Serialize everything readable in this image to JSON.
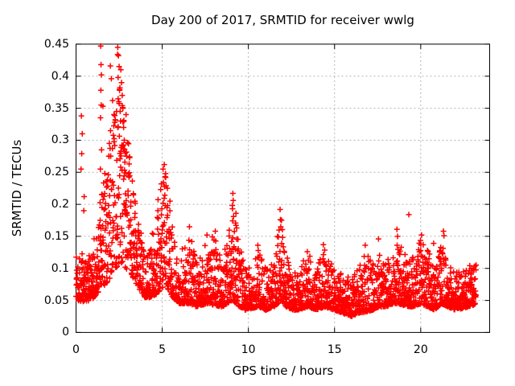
{
  "chart_data": {
    "type": "scatter",
    "title": "Day 200 of 2017, SRMTID for receiver wwlg",
    "xlabel": "GPS time / hours",
    "ylabel": "SRMTID / TECUs",
    "xlim": [
      0,
      24
    ],
    "ylim": [
      0,
      0.45
    ],
    "x_ticks": [
      0,
      5,
      10,
      15,
      20
    ],
    "x_tick_labels": [
      "0",
      "5",
      "10",
      "15",
      "20"
    ],
    "y_ticks": [
      0,
      0.05,
      0.1,
      0.15,
      0.2,
      0.25,
      0.3,
      0.35,
      0.4,
      0.45
    ],
    "y_tick_labels": [
      "0",
      "0.05",
      "0.1",
      "0.15",
      "0.2",
      "0.25",
      "0.3",
      "0.35",
      "0.4",
      "0.45"
    ],
    "grid": true,
    "legend": "none",
    "background": "#ffffff",
    "axis_color": "#000000",
    "grid_color": "#b4b4b4",
    "marker": {
      "style": "plus",
      "color": "#ff0000",
      "size": 7
    },
    "series": [
      {
        "name": "SRMTID",
        "seed": 1337,
        "sampling_hours": 0.008333,
        "t_start": 0,
        "t_end": 23.22,
        "envelope": [
          [
            0.0,
            0.05,
            0.145,
            1.6
          ],
          [
            0.4,
            0.048,
            0.125,
            1.9
          ],
          [
            0.9,
            0.05,
            0.12,
            2.0
          ],
          [
            1.2,
            0.06,
            0.18,
            1.8
          ],
          [
            1.5,
            0.07,
            0.23,
            1.6
          ],
          [
            1.9,
            0.08,
            0.3,
            1.5
          ],
          [
            2.3,
            0.1,
            0.36,
            1.4
          ],
          [
            2.6,
            0.11,
            0.4,
            1.35
          ],
          [
            2.9,
            0.1,
            0.33,
            1.45
          ],
          [
            3.2,
            0.09,
            0.26,
            1.5
          ],
          [
            3.6,
            0.07,
            0.18,
            1.8
          ],
          [
            4.0,
            0.055,
            0.13,
            2.0
          ],
          [
            4.3,
            0.055,
            0.14,
            2.0
          ],
          [
            4.7,
            0.06,
            0.2,
            1.8
          ],
          [
            5.0,
            0.07,
            0.24,
            1.7
          ],
          [
            5.3,
            0.07,
            0.26,
            1.7
          ],
          [
            5.6,
            0.055,
            0.17,
            2.0
          ],
          [
            6.0,
            0.045,
            0.12,
            2.2
          ],
          [
            6.6,
            0.045,
            0.16,
            2.2
          ],
          [
            7.0,
            0.04,
            0.11,
            2.2
          ],
          [
            7.6,
            0.045,
            0.15,
            2.2
          ],
          [
            8.1,
            0.042,
            0.155,
            2.2
          ],
          [
            8.5,
            0.04,
            0.11,
            2.2
          ],
          [
            9.1,
            0.05,
            0.215,
            2.0
          ],
          [
            9.4,
            0.042,
            0.15,
            2.2
          ],
          [
            9.8,
            0.035,
            0.1,
            2.2
          ],
          [
            10.3,
            0.038,
            0.11,
            2.2
          ],
          [
            10.6,
            0.04,
            0.13,
            2.2
          ],
          [
            11.0,
            0.035,
            0.1,
            2.2
          ],
          [
            11.5,
            0.04,
            0.12,
            2.2
          ],
          [
            11.9,
            0.05,
            0.185,
            2.0
          ],
          [
            12.2,
            0.04,
            0.13,
            2.2
          ],
          [
            12.6,
            0.035,
            0.095,
            2.2
          ],
          [
            13.0,
            0.035,
            0.1,
            2.2
          ],
          [
            13.4,
            0.04,
            0.125,
            2.2
          ],
          [
            14.0,
            0.035,
            0.105,
            2.2
          ],
          [
            14.4,
            0.04,
            0.13,
            2.2
          ],
          [
            15.0,
            0.035,
            0.1,
            2.2
          ],
          [
            15.5,
            0.03,
            0.09,
            2.2
          ],
          [
            16.0,
            0.025,
            0.085,
            2.2
          ],
          [
            16.4,
            0.03,
            0.105,
            2.2
          ],
          [
            16.8,
            0.032,
            0.13,
            2.2
          ],
          [
            17.2,
            0.035,
            0.105,
            2.2
          ],
          [
            17.6,
            0.04,
            0.14,
            2.2
          ],
          [
            18.0,
            0.04,
            0.12,
            2.2
          ],
          [
            18.4,
            0.045,
            0.14,
            2.2
          ],
          [
            18.7,
            0.045,
            0.16,
            2.1
          ],
          [
            19.0,
            0.042,
            0.125,
            2.2
          ],
          [
            19.5,
            0.04,
            0.115,
            2.2
          ],
          [
            20.0,
            0.045,
            0.145,
            2.1
          ],
          [
            20.4,
            0.04,
            0.13,
            2.2
          ],
          [
            20.8,
            0.035,
            0.105,
            2.2
          ],
          [
            21.2,
            0.045,
            0.15,
            2.1
          ],
          [
            21.6,
            0.04,
            0.105,
            2.2
          ],
          [
            22.0,
            0.035,
            0.095,
            2.2
          ],
          [
            22.5,
            0.038,
            0.095,
            2.2
          ],
          [
            23.0,
            0.042,
            0.11,
            2.1
          ],
          [
            23.22,
            0.045,
            0.11,
            2.1
          ]
        ],
        "peaks": [
          [
            0.29,
            0.255
          ],
          [
            0.31,
            0.338
          ],
          [
            0.33,
            0.279
          ],
          [
            0.36,
            0.31
          ],
          [
            0.45,
            0.19
          ],
          [
            0.47,
            0.212
          ],
          [
            1.4,
            0.175
          ],
          [
            1.41,
            0.255
          ],
          [
            1.42,
            0.335
          ],
          [
            1.43,
            0.447
          ],
          [
            1.44,
            0.378
          ],
          [
            1.45,
            0.418
          ],
          [
            1.46,
            0.355
          ],
          [
            1.47,
            0.402
          ],
          [
            1.48,
            0.285
          ],
          [
            1.49,
            0.215
          ],
          [
            1.5,
            0.195
          ],
          [
            1.56,
            0.353
          ],
          [
            1.99,
            0.416
          ],
          [
            2.05,
            0.396
          ],
          [
            2.12,
            0.362
          ],
          [
            2.2,
            0.34
          ],
          [
            2.41,
            0.434
          ],
          [
            2.42,
            0.445
          ],
          [
            2.44,
            0.398
          ],
          [
            2.46,
            0.432
          ],
          [
            2.48,
            0.36
          ],
          [
            2.5,
            0.415
          ],
          [
            2.53,
            0.378
          ],
          [
            2.56,
            0.345
          ],
          [
            2.58,
            0.33
          ],
          [
            2.6,
            0.41
          ],
          [
            2.64,
            0.39
          ],
          [
            2.68,
            0.37
          ],
          [
            2.72,
            0.35
          ],
          [
            2.76,
            0.32
          ],
          [
            2.8,
            0.3
          ],
          [
            2.85,
            0.28
          ],
          [
            2.9,
            0.34
          ],
          [
            4.95,
            0.232
          ],
          [
            5.05,
            0.255
          ],
          [
            5.12,
            0.262
          ],
          [
            5.2,
            0.242
          ],
          [
            5.3,
            0.225
          ],
          [
            5.45,
            0.205
          ],
          [
            6.58,
            0.165
          ],
          [
            7.6,
            0.152
          ],
          [
            8.08,
            0.158
          ],
          [
            9.08,
            0.193
          ],
          [
            9.1,
            0.217
          ],
          [
            9.12,
            0.206
          ],
          [
            9.14,
            0.181
          ],
          [
            9.28,
            0.186
          ],
          [
            9.32,
            0.163
          ],
          [
            10.55,
            0.136
          ],
          [
            11.84,
            0.192
          ],
          [
            11.86,
            0.176
          ],
          [
            11.88,
            0.165
          ],
          [
            13.42,
            0.126
          ],
          [
            14.35,
            0.137
          ],
          [
            16.78,
            0.136
          ],
          [
            17.55,
            0.146
          ],
          [
            18.62,
            0.161
          ],
          [
            18.66,
            0.15
          ],
          [
            19.31,
            0.184
          ],
          [
            20.05,
            0.152
          ],
          [
            20.75,
            0.139
          ],
          [
            21.32,
            0.158
          ],
          [
            21.35,
            0.151
          ]
        ]
      }
    ]
  }
}
